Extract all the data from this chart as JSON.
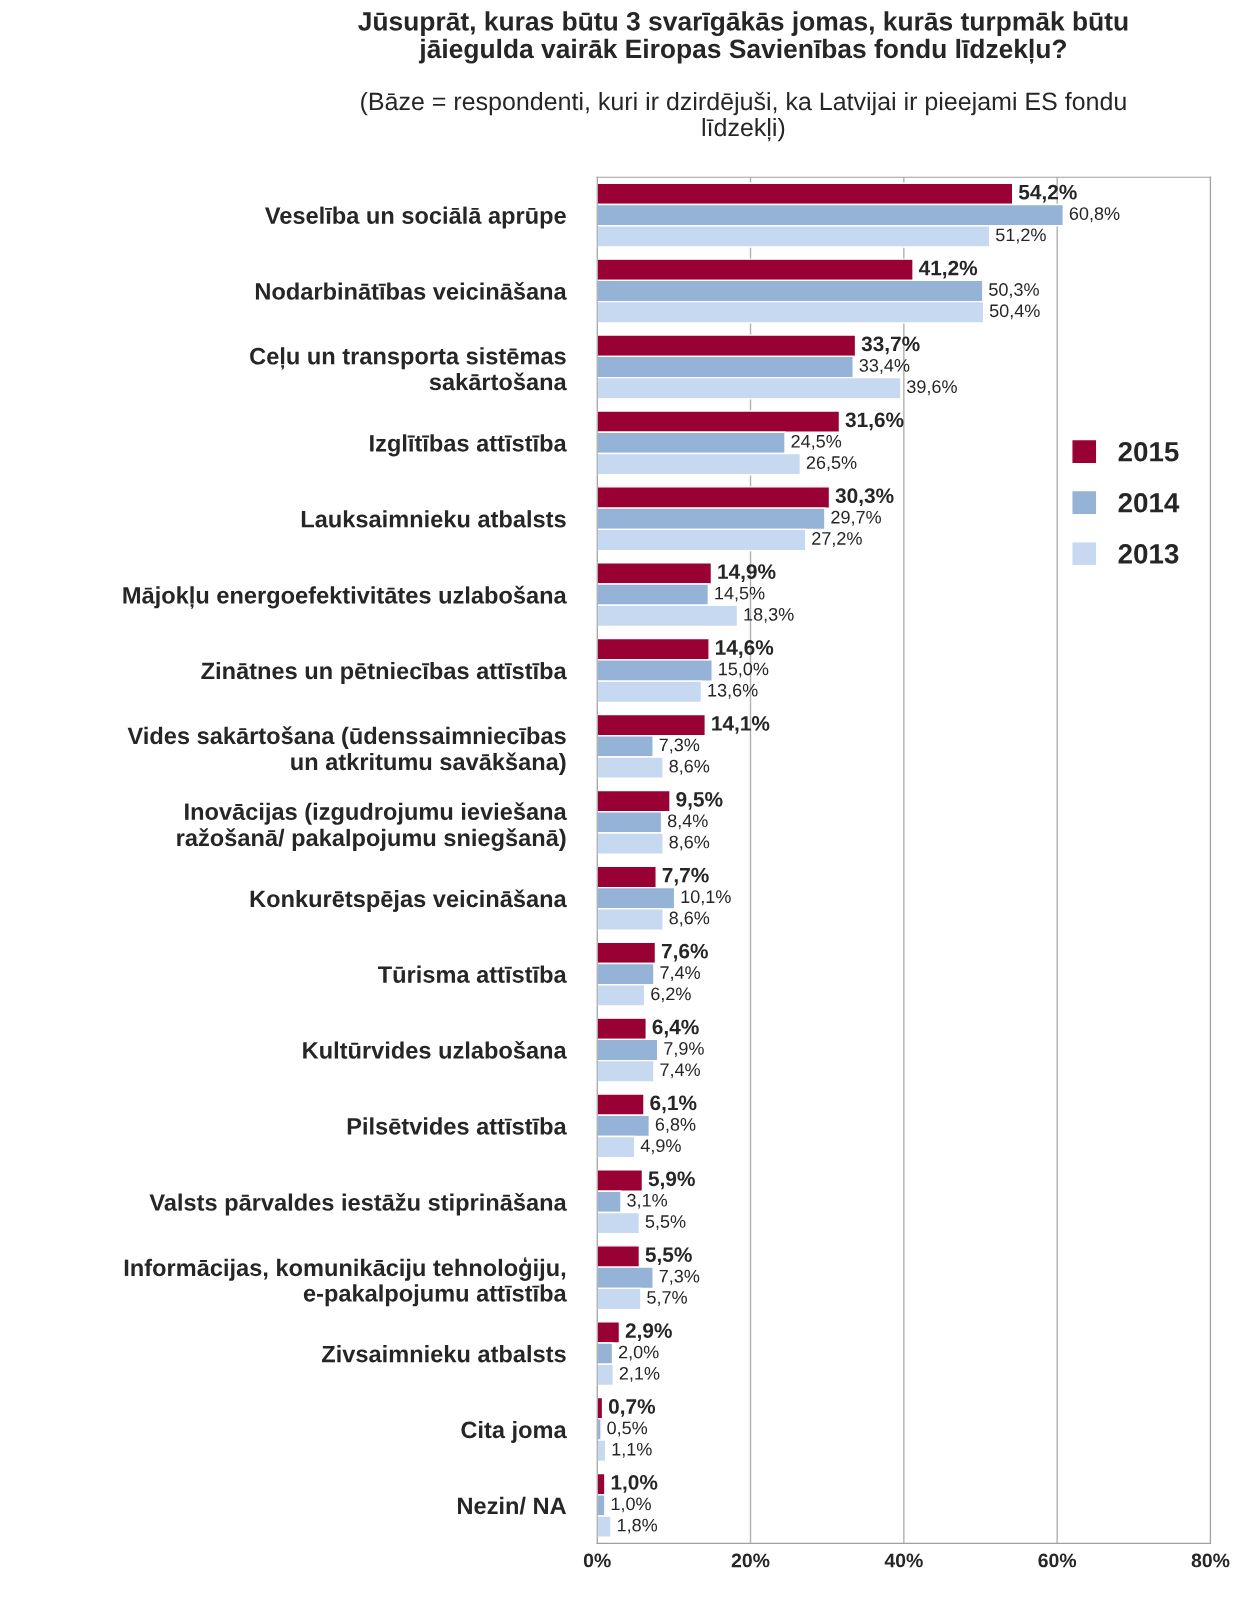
{
  "chart_data": {
    "type": "bar",
    "orientation": "horizontal",
    "title": "Jūsuprāt, kuras būtu 3 svarīgākās jomas, kurās turpmāk būtu\njāiegulda vairāk Eiropas Savienības fondu līdzekļu?",
    "subtitle": "(Bāze = respondenti, kuri ir dzirdējuši, ka Latvijai ir pieejami ES fondu\nlīdzekļi)",
    "categories": [
      "Veselība un sociālā aprūpe",
      "Nodarbinātības veicināšana",
      "Ceļu un transporta sistēmas\nsakārtošana",
      "Izglītības attīstība",
      "Lauksaimnieku atbalsts",
      "Mājokļu energoefektivitātes uzlabošana",
      "Zinātnes un pētniecības attīstība",
      "Vides sakārtošana (ūdenssaimniecības\nun atkritumu savākšana)",
      "Inovācijas (izgudrojumu ieviešana\nražošanā/ pakalpojumu sniegšanā)",
      "Konkurētspējas veicināšana",
      "Tūrisma attīstība",
      "Kultūrvides uzlabošana",
      "Pilsētvides attīstība",
      "Valsts pārvaldes iestāžu stiprināšana",
      "Informācijas, komunikāciju tehnoloģiju,\ne-pakalpojumu attīstība",
      "Zivsaimnieku atbalsts",
      "Cita joma",
      "Nezin/ NA"
    ],
    "series": [
      {
        "name": "2015",
        "color": "#990033",
        "values": [
          54.2,
          41.2,
          33.7,
          31.6,
          30.3,
          14.9,
          14.6,
          14.1,
          9.5,
          7.7,
          7.6,
          6.4,
          6.1,
          5.9,
          5.5,
          2.9,
          0.7,
          1.0
        ],
        "value_labels": [
          "54,2%",
          "41,2%",
          "33,7%",
          "31,6%",
          "30,3%",
          "14,9%",
          "14,6%",
          "14,1%",
          "9,5%",
          "7,7%",
          "7,6%",
          "6,4%",
          "6,1%",
          "5,9%",
          "5,5%",
          "2,9%",
          "0,7%",
          "1,0%"
        ]
      },
      {
        "name": "2014",
        "color": "#95b3d7",
        "values": [
          60.8,
          50.3,
          33.4,
          24.5,
          29.7,
          14.5,
          15.0,
          7.3,
          8.4,
          10.1,
          7.4,
          7.9,
          6.8,
          3.1,
          7.3,
          2.0,
          0.5,
          1.0
        ],
        "value_labels": [
          "60,8%",
          "50,3%",
          "33,4%",
          "24,5%",
          "29,7%",
          "14,5%",
          "15,0%",
          "7,3%",
          "8,4%",
          "10,1%",
          "7,4%",
          "7,9%",
          "6,8%",
          "3,1%",
          "7,3%",
          "2,0%",
          "0,5%",
          "1,0%"
        ]
      },
      {
        "name": "2013",
        "color": "#c6d9f1",
        "values": [
          51.2,
          50.4,
          39.6,
          26.5,
          27.2,
          18.3,
          13.6,
          8.6,
          8.6,
          8.6,
          6.2,
          7.4,
          4.9,
          5.5,
          5.7,
          2.1,
          1.1,
          1.8
        ],
        "value_labels": [
          "51,2%",
          "50,4%",
          "39,6%",
          "26,5%",
          "27,2%",
          "18,3%",
          "13,6%",
          "8,6%",
          "8,6%",
          "8,6%",
          "6,2%",
          "7,4%",
          "4,9%",
          "5,5%",
          "5,7%",
          "2,1%",
          "1,1%",
          "1,8%"
        ]
      }
    ],
    "xlim": [
      0,
      80
    ],
    "xticks": [
      {
        "value": 0,
        "label": "0%"
      },
      {
        "value": 20,
        "label": "20%"
      },
      {
        "value": 40,
        "label": "40%"
      },
      {
        "value": 60,
        "label": "60%"
      },
      {
        "value": 80,
        "label": "80%"
      }
    ],
    "grid": "x",
    "legend": "right"
  }
}
